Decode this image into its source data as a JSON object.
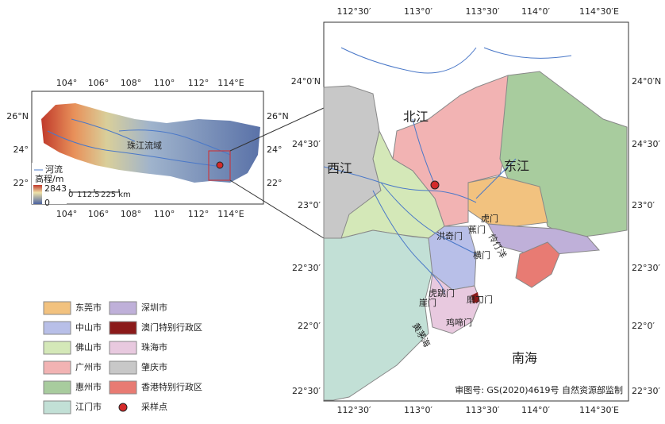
{
  "inset": {
    "lon_top": [
      "104°",
      "106°",
      "108°",
      "110°",
      "112°",
      "114°E"
    ],
    "lon_bottom": [
      "104°",
      "106°",
      "108°",
      "110°",
      "112°",
      "114°E"
    ],
    "lat_left": [
      "26°N",
      "24°",
      "22°"
    ],
    "lat_right": [
      "26°N",
      "24°",
      "22°"
    ],
    "basin_label": "珠江流域",
    "legend": {
      "river": "河流",
      "elevation": "高程/m",
      "elev_max": 2843,
      "elev_min": 0
    },
    "scale": [
      0,
      112.5,
      "225 km"
    ]
  },
  "main": {
    "lon_top": [
      "112°30′",
      "113°0′",
      "113°30′",
      "114°0′",
      "114°30′E"
    ],
    "lon_bottom": [
      "112°30′",
      "113°0′",
      "113°30′",
      "114°0′",
      "114°30′E"
    ],
    "lat_left": [
      "24°0′N",
      "24°30′",
      "23°0′",
      "22°30′",
      "22°0′",
      "22°30′"
    ],
    "lat_right": [
      "24°0′N",
      "24°30′",
      "23°0′",
      "22°30′",
      "22°0′",
      "22°30′"
    ],
    "labels": [
      "北江",
      "西江",
      "东江",
      "南海",
      "虎门",
      "蕉门",
      "洪奇门",
      "横门",
      "磨刀门",
      "虎跳门",
      "崖门",
      "鸡啼门",
      "黄茅海",
      "伶仃洋"
    ],
    "credit": "审图号: GS(2020)4619号 自然资源部监制"
  },
  "legend": [
    {
      "name": "东莞市",
      "color": "#f2c27f"
    },
    {
      "name": "深圳市",
      "color": "#bfb0d9"
    },
    {
      "name": "中山市",
      "color": "#b8bfe8"
    },
    {
      "name": "澳门特别行政区",
      "color": "#8b1a1a"
    },
    {
      "name": "佛山市",
      "color": "#d4e8b8"
    },
    {
      "name": "珠海市",
      "color": "#e8c9df"
    },
    {
      "name": "广州市",
      "color": "#f2b3b3"
    },
    {
      "name": "肇庆市",
      "color": "#c8c8c8"
    },
    {
      "name": "惠州市",
      "color": "#a8cc9e"
    },
    {
      "name": "香港特别行政区",
      "color": "#e87b73"
    },
    {
      "name": "江门市",
      "color": "#c2e0d6"
    },
    {
      "name": "采样点",
      "color": "#d42a2a"
    }
  ]
}
